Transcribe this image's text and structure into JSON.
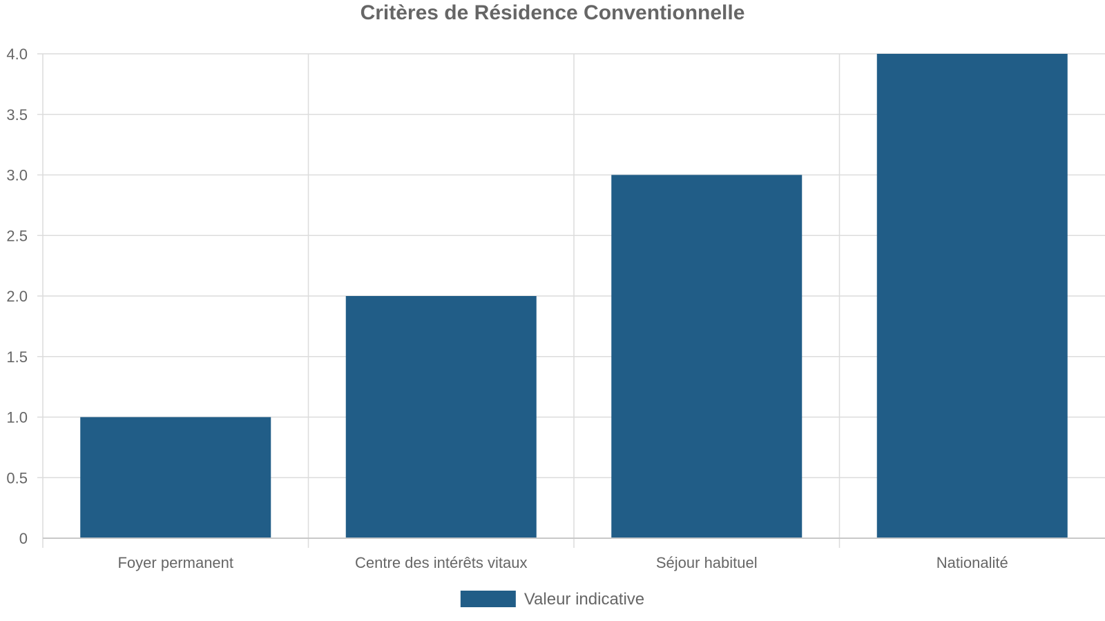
{
  "chart_data": {
    "type": "bar",
    "title": "Critères de Résidence Conventionnelle",
    "categories": [
      "Foyer permanent",
      "Centre des intérêts vitaux",
      "Séjour habituel",
      "Nationalité"
    ],
    "series": [
      {
        "name": "Valeur indicative",
        "values": [
          1,
          2,
          3,
          4
        ],
        "color": "#215d87"
      }
    ],
    "xlabel": "",
    "ylabel": "",
    "ylim": [
      0,
      4
    ],
    "yticks": [
      "0",
      "0.5",
      "1.0",
      "1.5",
      "2.0",
      "2.5",
      "3.0",
      "3.5",
      "4.0"
    ],
    "grid": true,
    "legend_position": "bottom-center"
  },
  "colors": {
    "bar": "#215d87",
    "grid": "#dcdcdc",
    "axis": "#c8c8c8",
    "text": "#666666"
  }
}
